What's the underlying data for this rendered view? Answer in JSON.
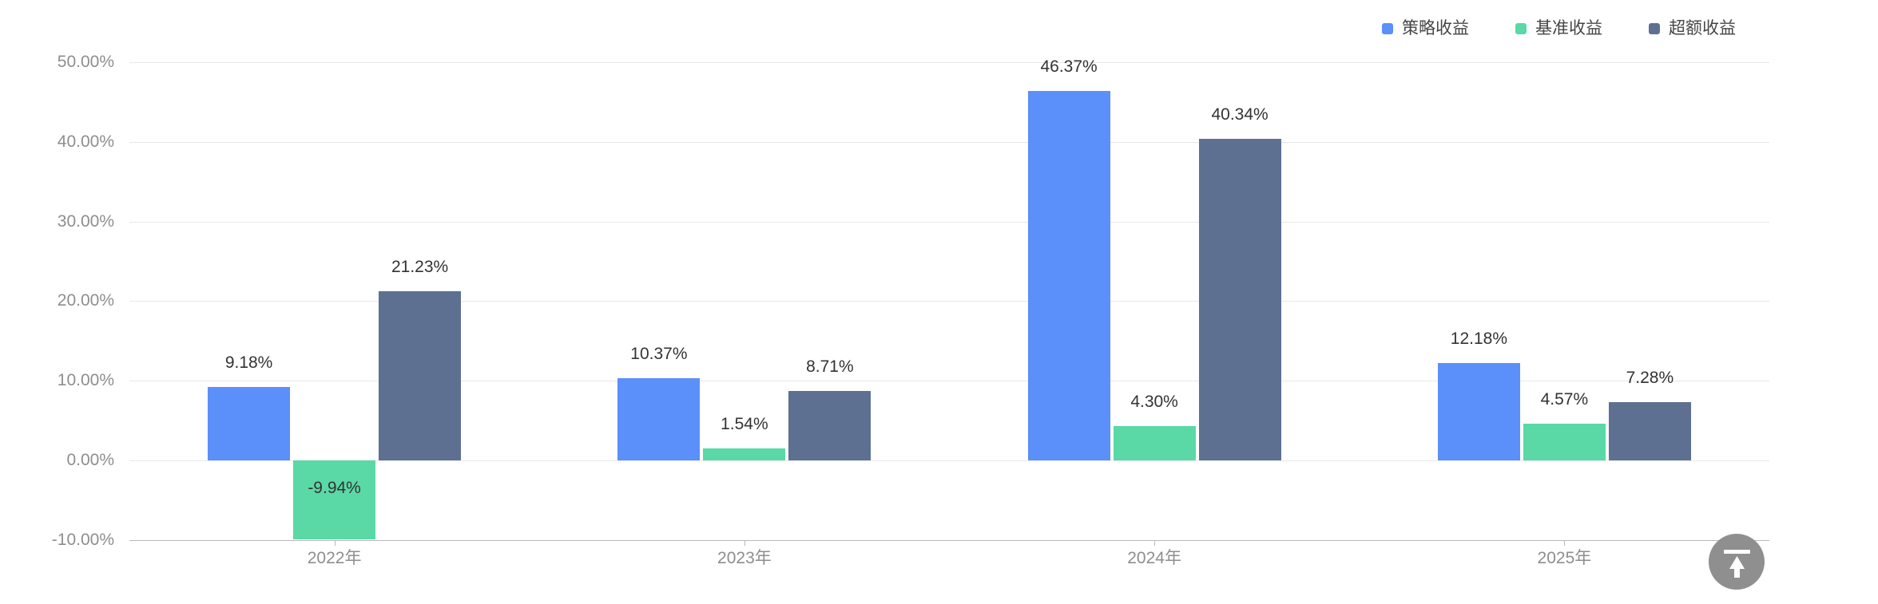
{
  "chart_data": {
    "type": "bar",
    "title": "",
    "categories": [
      "2022年",
      "2023年",
      "2024年",
      "2025年"
    ],
    "series": [
      {
        "name": "策略收益",
        "color": "#5B8FF9",
        "values": [
          9.18,
          10.37,
          46.37,
          12.18
        ],
        "labels": [
          "9.18%",
          "10.37%",
          "46.37%",
          "12.18%"
        ]
      },
      {
        "name": "基准收益",
        "color": "#5AD8A6",
        "values": [
          -9.94,
          1.54,
          4.3,
          4.57
        ],
        "labels": [
          "-9.94%",
          "1.54%",
          "4.30%",
          "4.57%"
        ]
      },
      {
        "name": "超额收益",
        "color": "#5D7092",
        "values": [
          21.23,
          8.71,
          40.34,
          7.28
        ],
        "labels": [
          "21.23%",
          "8.71%",
          "40.34%",
          "7.28%"
        ]
      }
    ],
    "y_axis": {
      "ticks": [
        "50.00%",
        "40.00%",
        "30.00%",
        "20.00%",
        "10.00%",
        "0.00%",
        "-10.00%"
      ],
      "max": 50,
      "min": -10,
      "step": 10,
      "label_format": "percent"
    },
    "x_axis": {
      "label": ""
    },
    "legend_position": "top-right",
    "grid": true,
    "value_labels_shown": true
  },
  "colors": {
    "axis_label": "#8e8e8e",
    "data_label": "#333333",
    "gridline": "#e8e8e8",
    "axis_line": "#b9b9b9",
    "legend_text": "#454545",
    "back_to_top_bg": "#8f8f8f",
    "back_to_top_glyph": "#ffffff"
  },
  "back_to_top": {
    "icon": "arrow-up-to-line"
  }
}
